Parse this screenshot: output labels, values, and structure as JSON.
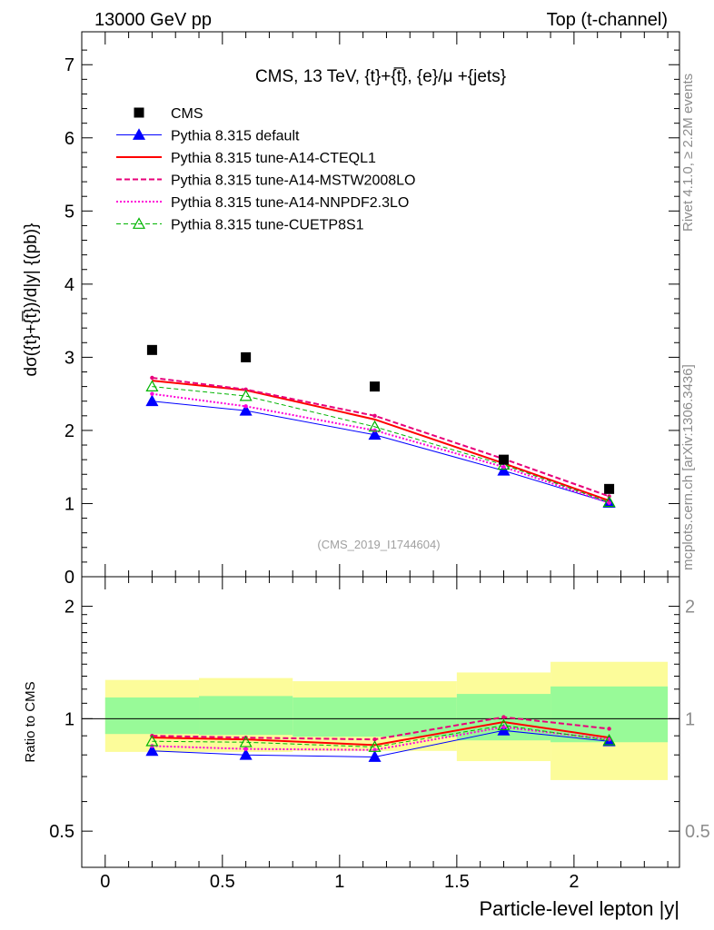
{
  "header": {
    "left": "13000 GeV pp",
    "right": "Top (t-channel)"
  },
  "side_labels": {
    "rivet": "Rivet 4.1.0, ≥ 2.2M events",
    "mcplots": "mcplots.cern.ch [arXiv:1306.3436]"
  },
  "chart_data": [
    {
      "type": "line",
      "title": "CMS, 13 TeV, {t}+{t̅}, {e}/μ +{jets}",
      "watermark": "(CMS_2019_I1744604)",
      "ylabel": "dσ({t}+{t̅})/d|y|  {(pb)}",
      "xlim": [
        -0.1,
        2.45
      ],
      "ylim": [
        0,
        7.45
      ],
      "ytick_labels": [
        "0",
        "1",
        "2",
        "3",
        "4",
        "5",
        "6",
        "7"
      ],
      "reference": {
        "name": "CMS",
        "color": "#000000",
        "x": [
          0.2,
          0.6,
          1.15,
          1.7,
          2.15
        ],
        "y": [
          3.1,
          3.0,
          2.6,
          1.6,
          1.2
        ]
      },
      "series": [
        {
          "name": "Pythia 8.315 default",
          "color": "#0000ff",
          "dash": "",
          "marker": "triangle-filled",
          "width": 1,
          "x": [
            0.2,
            0.6,
            1.15,
            1.7,
            2.15
          ],
          "y": [
            2.4,
            2.27,
            1.94,
            1.45,
            1.01
          ]
        },
        {
          "name": "Pythia 8.315 tune-A14-CTEQL1",
          "color": "#ff0000",
          "dash": "",
          "marker": "none",
          "width": 2,
          "x": [
            0.2,
            0.6,
            1.15,
            1.7,
            2.15
          ],
          "y": [
            2.68,
            2.55,
            2.15,
            1.55,
            1.04
          ]
        },
        {
          "name": "Pythia 8.315 tune-A14-MSTW2008LO",
          "color": "#e8007a",
          "dash": "6,3",
          "marker": "dot",
          "width": 2,
          "x": [
            0.2,
            0.6,
            1.15,
            1.7,
            2.15
          ],
          "y": [
            2.72,
            2.56,
            2.2,
            1.61,
            1.1
          ]
        },
        {
          "name": "Pythia 8.315 tune-A14-NNPDF2.3LO",
          "color": "#ff00d8",
          "dash": "2,2",
          "marker": "dot",
          "width": 2,
          "x": [
            0.2,
            0.6,
            1.15,
            1.7,
            2.15
          ],
          "y": [
            2.5,
            2.33,
            2.0,
            1.5,
            1.01
          ]
        },
        {
          "name": "Pythia 8.315 tune-CUETP8S1",
          "color": "#00b400",
          "dash": "5,3",
          "marker": "triangle-open",
          "width": 1,
          "x": [
            0.2,
            0.6,
            1.15,
            1.7,
            2.15
          ],
          "y": [
            2.6,
            2.47,
            2.05,
            1.53,
            1.02
          ]
        }
      ]
    },
    {
      "type": "line",
      "ylabel": "Ratio to CMS",
      "xlabel": "Particle-level lepton |y|",
      "xlim": [
        -0.1,
        2.45
      ],
      "ylim": [
        0.4,
        2.4
      ],
      "yscale": "log",
      "xtick_labels": [
        "0",
        "0.5",
        "1",
        "1.5",
        "2"
      ],
      "ytick_labels": [
        "0.5",
        "1",
        "2"
      ],
      "bands": {
        "bin_edges": [
          0,
          0.4,
          0.8,
          1.5,
          1.9,
          2.4
        ],
        "stat_color": "#98fa98",
        "total_color": "#fcfc9a",
        "stat_lo": [
          0.91,
          0.905,
          0.895,
          0.875,
          0.865
        ],
        "stat_hi": [
          1.14,
          1.15,
          1.14,
          1.165,
          1.22
        ],
        "total_lo": [
          0.815,
          0.815,
          0.82,
          0.77,
          0.685
        ],
        "total_hi": [
          1.27,
          1.285,
          1.26,
          1.33,
          1.42
        ]
      },
      "series": [
        {
          "name": "Pythia 8.315 default",
          "x": [
            0.2,
            0.6,
            1.15,
            1.7,
            2.15
          ],
          "y": [
            0.82,
            0.8,
            0.79,
            0.93,
            0.87
          ]
        },
        {
          "name": "Pythia 8.315 tune-A14-CTEQL1",
          "x": [
            0.2,
            0.6,
            1.15,
            1.7,
            2.15
          ],
          "y": [
            0.89,
            0.88,
            0.85,
            0.98,
            0.89
          ]
        },
        {
          "name": "Pythia 8.315 tune-A14-MSTW2008LO",
          "x": [
            0.2,
            0.6,
            1.15,
            1.7,
            2.15
          ],
          "y": [
            0.9,
            0.89,
            0.88,
            1.01,
            0.94
          ]
        },
        {
          "name": "Pythia 8.315 tune-A14-NNPDF2.3LO",
          "x": [
            0.2,
            0.6,
            1.15,
            1.7,
            2.15
          ],
          "y": [
            0.845,
            0.83,
            0.825,
            0.95,
            0.88
          ]
        },
        {
          "name": "Pythia 8.315 tune-CUETP8S1",
          "x": [
            0.2,
            0.6,
            1.15,
            1.7,
            2.15
          ],
          "y": [
            0.87,
            0.865,
            0.84,
            0.96,
            0.875
          ]
        }
      ]
    }
  ]
}
